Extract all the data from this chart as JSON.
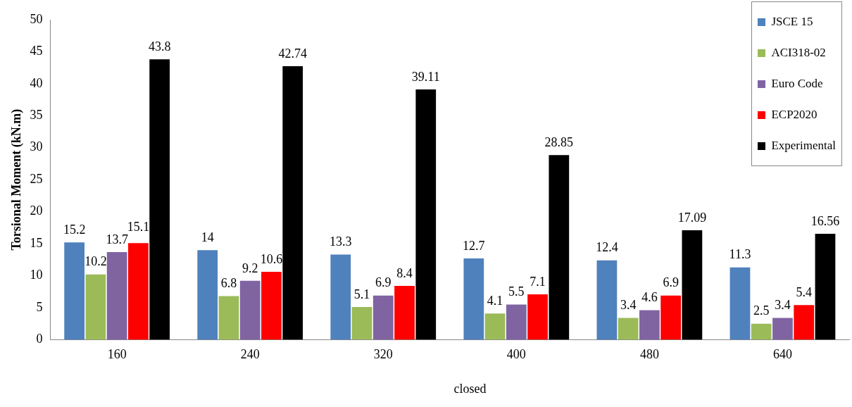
{
  "chart_data": {
    "type": "bar",
    "ylabel": "Torsional Moment (kN.m)",
    "xlabel": "closed",
    "categories": [
      "160",
      "240",
      "320",
      "400",
      "480",
      "640"
    ],
    "series": [
      {
        "name": "JSCE 15",
        "color": "#4f81bd",
        "values": [
          15.2,
          14,
          13.3,
          12.7,
          12.4,
          11.3
        ]
      },
      {
        "name": "ACI318-02",
        "color": "#9bbb59",
        "values": [
          10.2,
          6.8,
          5.1,
          4.1,
          3.4,
          2.5
        ]
      },
      {
        "name": "Euro Code",
        "color": "#8064a2",
        "values": [
          13.7,
          9.2,
          6.9,
          5.5,
          4.6,
          3.4
        ]
      },
      {
        "name": "ECP2020",
        "color": "#ff0000",
        "values": [
          15.1,
          10.6,
          8.4,
          7.1,
          6.9,
          5.4
        ]
      },
      {
        "name": "Experimental",
        "color": "#000000",
        "values": [
          43.8,
          42.74,
          39.11,
          28.85,
          17.09,
          16.56
        ]
      }
    ],
    "ylim": [
      0,
      50
    ],
    "yticks": [
      0,
      5,
      10,
      15,
      20,
      25,
      30,
      35,
      40,
      45,
      50
    ],
    "grid": false,
    "legend": "top right",
    "data_labels": true
  }
}
